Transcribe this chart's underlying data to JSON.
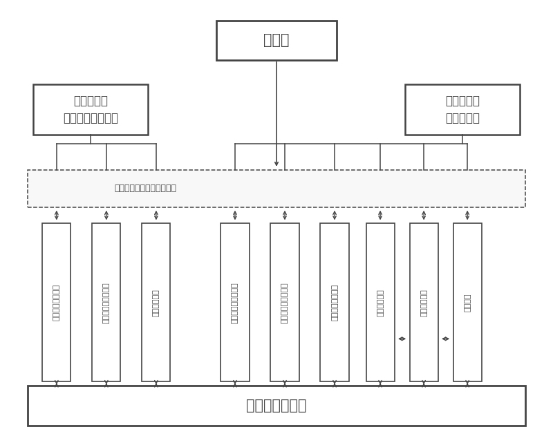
{
  "bg_color": "#ffffff",
  "line_color": "#444444",
  "box_bg": "#ffffff",
  "title_top": "上位机",
  "title_bottom": "冷热电联供系统",
  "box_left": "基于物联网\n的能源岛安保系统",
  "box_right": "基于物联网\n的节能系统",
  "network_label": "基于物联网技术的通信网络",
  "columns_left": [
    "设备状态监控系统",
    "能源岛人员管理系统",
    "意外防护系统"
  ],
  "columns_right": [
    "负载端人员监控系统",
    "负载端参数监控系统",
    "环境参数监控系统",
    "负荷预测系统",
    "运行控制系统",
    "蓄冷系统"
  ],
  "figsize": [
    8.0,
    6.44
  ],
  "dpi": 100
}
